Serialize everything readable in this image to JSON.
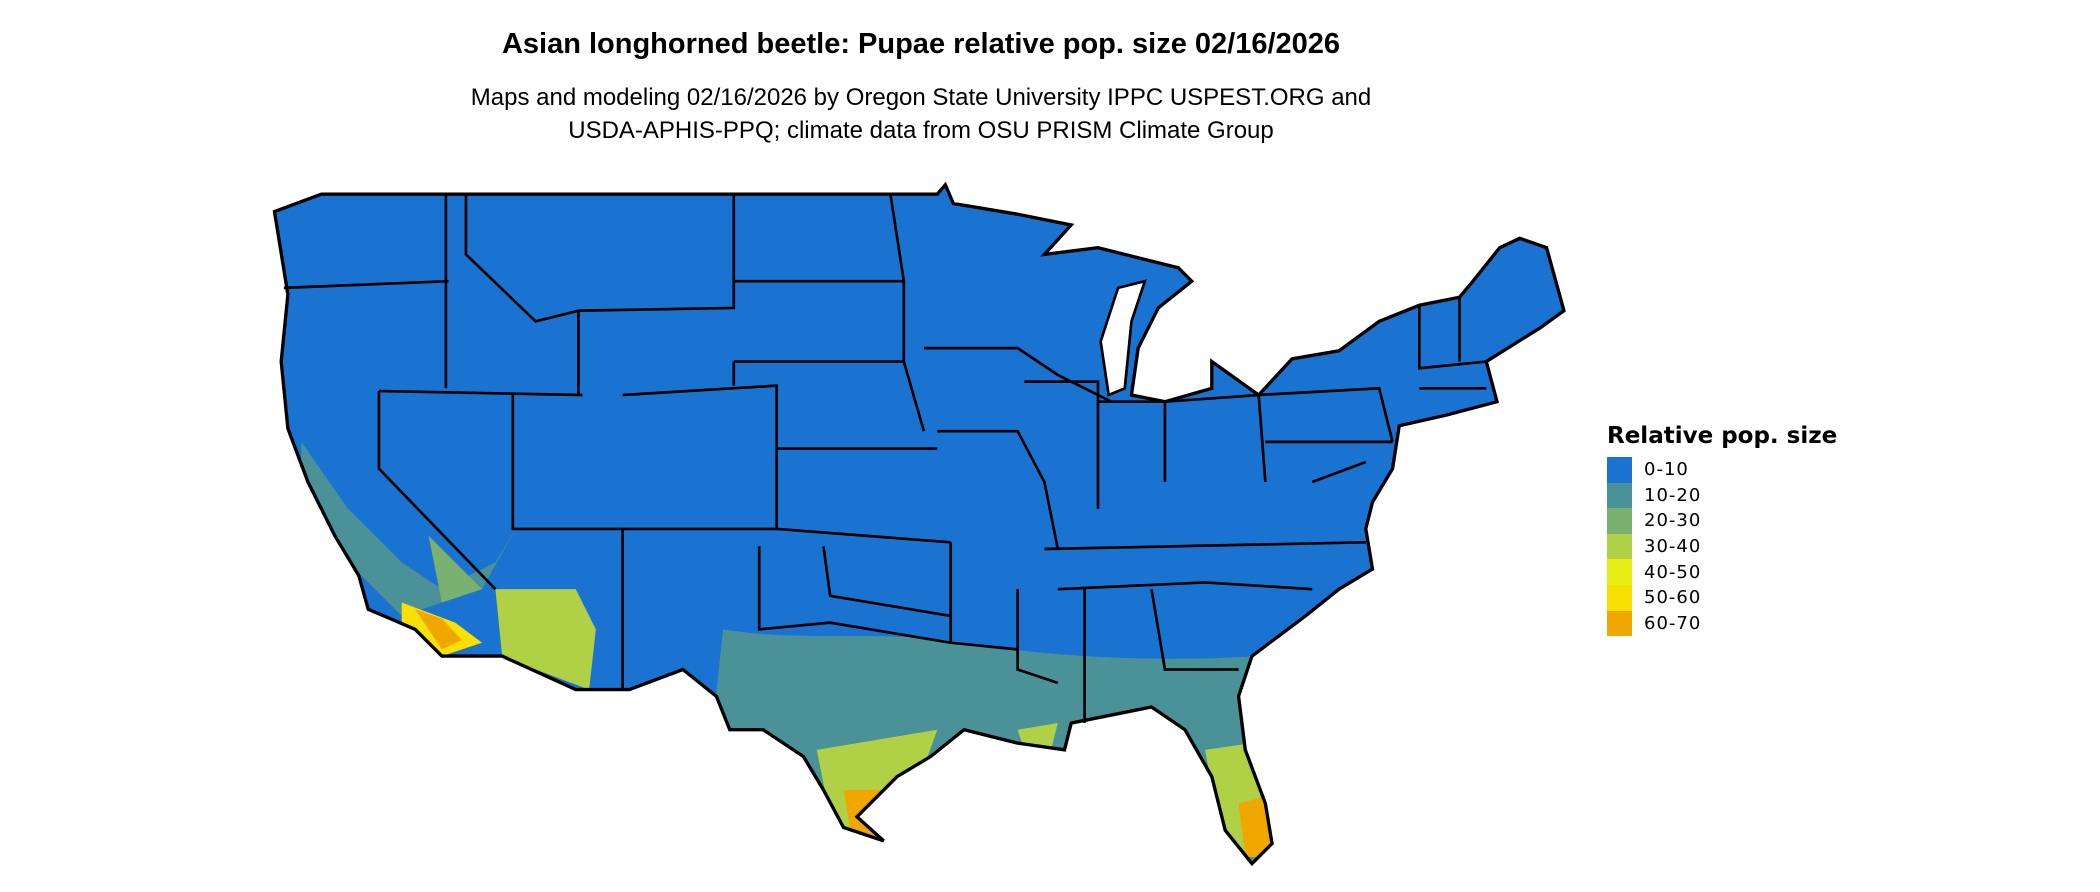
{
  "title": "Asian longhorned beetle: Pupae relative pop. size 02/16/2026",
  "subtitle_line1": "Maps and modeling 02/16/2026 by Oregon State University IPPC USPEST.ORG and",
  "subtitle_line2": "USDA-APHIS-PPQ; climate data from OSU PRISM Climate Group",
  "legend": {
    "title": "Relative pop. size",
    "items": [
      {
        "label": "0-10",
        "color": "#1A73D0"
      },
      {
        "label": "10-20",
        "color": "#4A9298"
      },
      {
        "label": "20-30",
        "color": "#7AB070"
      },
      {
        "label": "30-40",
        "color": "#B0D045"
      },
      {
        "label": "40-50",
        "color": "#E6EE14"
      },
      {
        "label": "50-60",
        "color": "#F8E000"
      },
      {
        "label": "60-70",
        "color": "#F0A800"
      }
    ]
  },
  "map": {
    "region": "Contiguous United States",
    "borders": "state",
    "summary_by_area": {
      "north_and_central": "0-10",
      "gulf_coast_band": "10-20",
      "south_texas": "30-40",
      "peninsular_florida": "30-40",
      "south_florida": "60-70",
      "southern_arizona": "30-40",
      "southern_california_desert": "50-60"
    }
  }
}
